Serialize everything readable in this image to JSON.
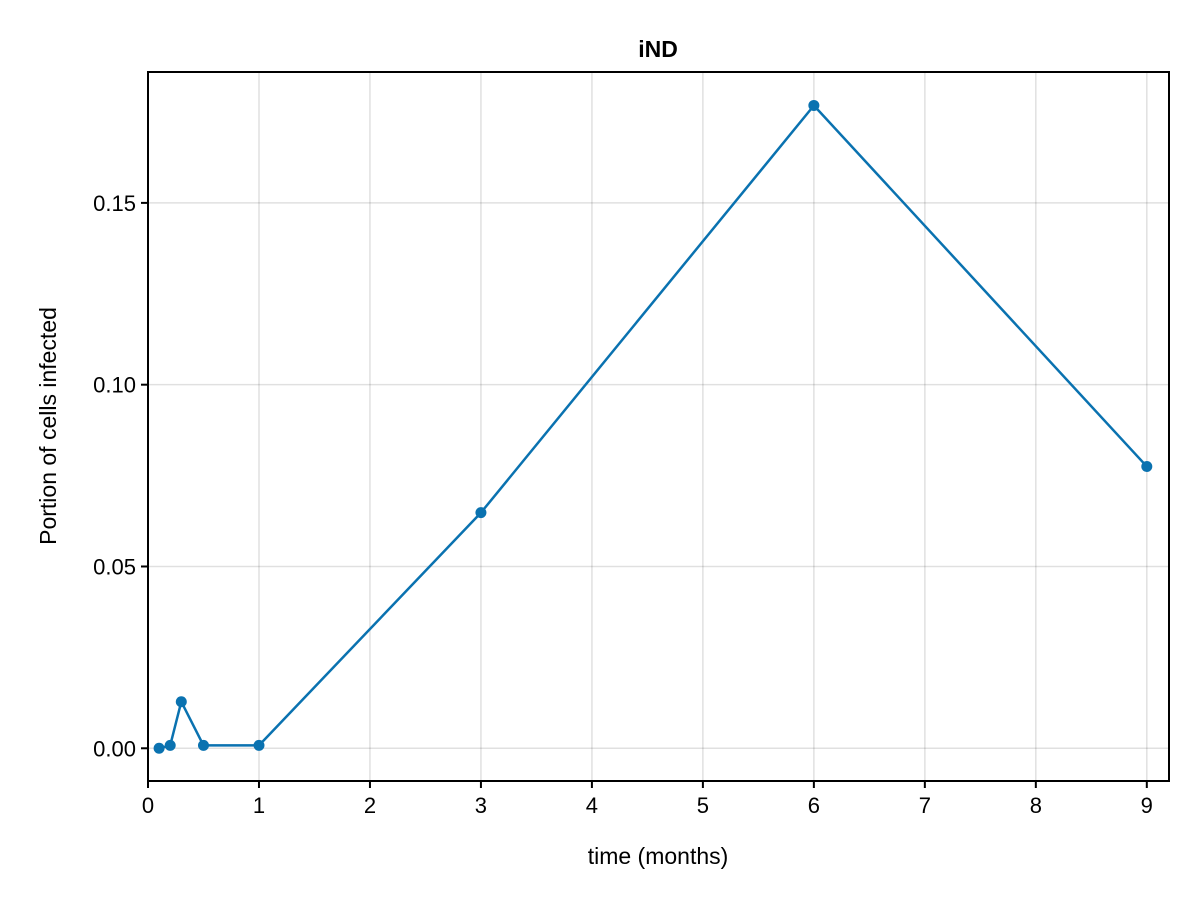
{
  "chart_data": {
    "type": "line",
    "title": "iND",
    "xlabel": "time (months)",
    "ylabel": "Portion of cells infected",
    "xlim": [
      0,
      9.2
    ],
    "ylim": [
      -0.009,
      0.186
    ],
    "x_ticks": [
      0,
      1,
      2,
      3,
      4,
      5,
      6,
      7,
      8,
      9
    ],
    "x_tick_labels": [
      "0",
      "1",
      "2",
      "3",
      "4",
      "5",
      "6",
      "7",
      "8",
      "9"
    ],
    "y_ticks": [
      0.0,
      0.05,
      0.1,
      0.15
    ],
    "y_tick_labels": [
      "0.00",
      "0.05",
      "0.10",
      "0.15"
    ],
    "grid": true,
    "legend": "none",
    "series": [
      {
        "color": "#0a72b0",
        "markers": true,
        "x": [
          0.1,
          0.2,
          0.3,
          0.5,
          1,
          3,
          6,
          9
        ],
        "y": [
          0.0,
          0.0008,
          0.0128,
          0.0008,
          0.0008,
          0.0648,
          0.1768,
          0.0775
        ]
      }
    ]
  }
}
